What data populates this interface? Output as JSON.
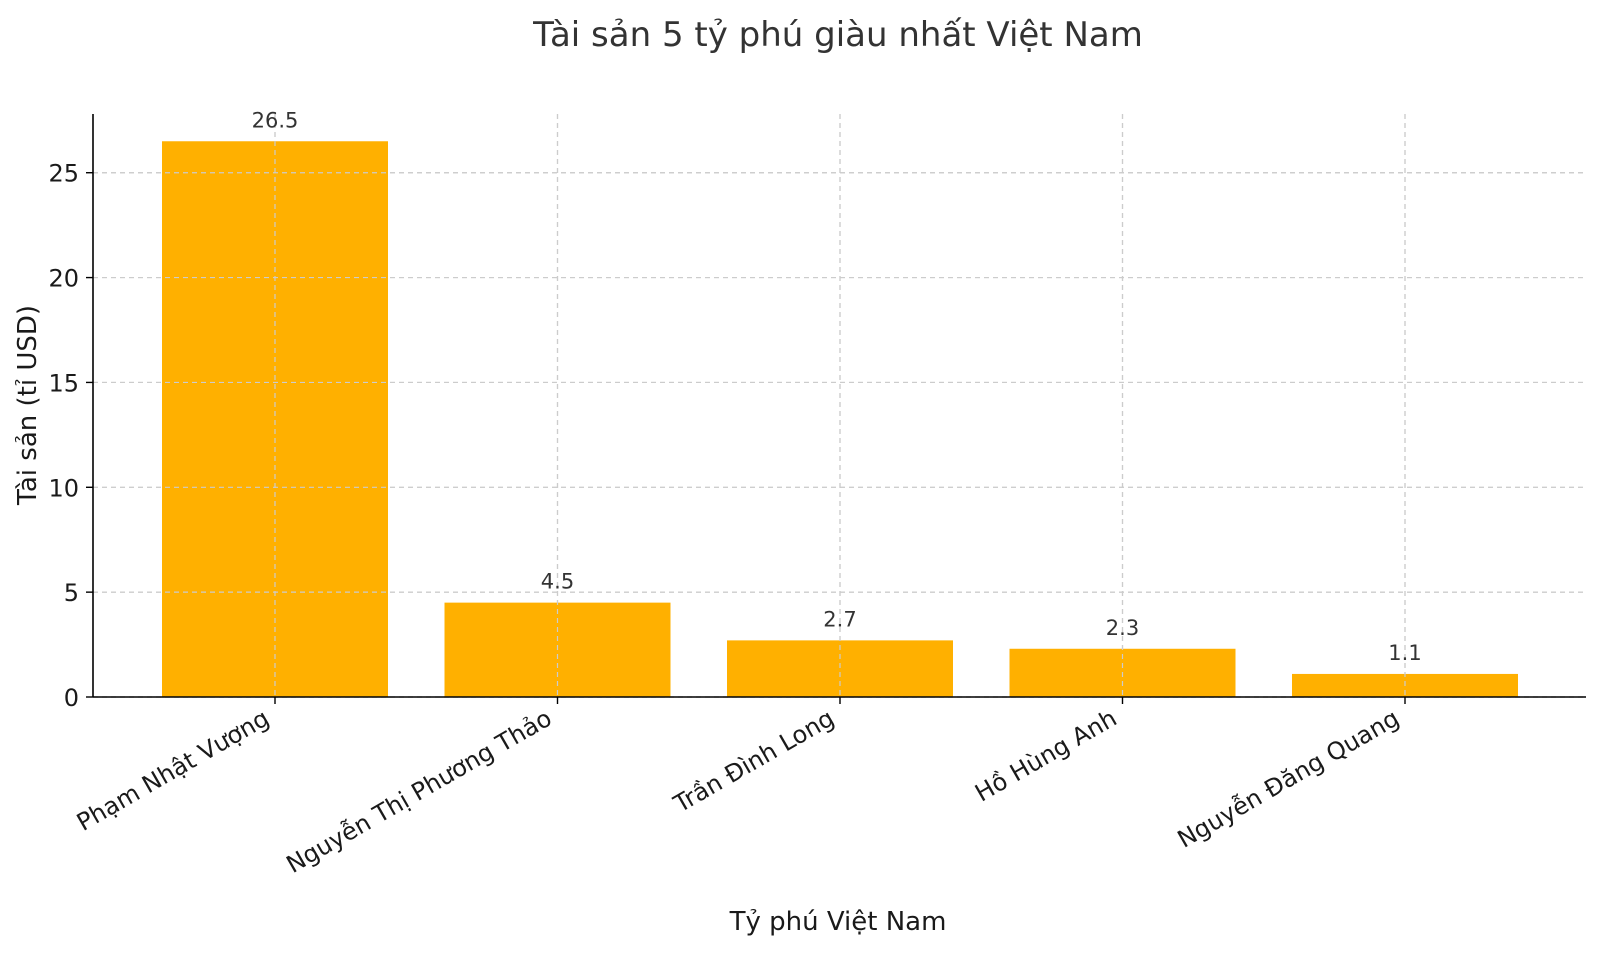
{
  "chart_data": {
    "type": "bar",
    "title": "Tài sản 5 tỷ phú giàu nhất Việt Nam",
    "xlabel": "Tỷ phú Việt Nam",
    "ylabel": "Tài sản (tỉ USD)",
    "categories": [
      "Phạm Nhật Vượng",
      "Nguyễn Thị Phương Thảo",
      "Trần Đình Long",
      "Hồ Hùng Anh",
      "Nguyễn Đăng Quang"
    ],
    "values": [
      26.5,
      4.5,
      2.7,
      2.3,
      1.1
    ],
    "data_labels": [
      "26.5",
      "4.5",
      "2.7",
      "2.3",
      "1.1"
    ],
    "yticks": [
      0,
      5,
      10,
      15,
      20,
      25
    ],
    "ylim": [
      0,
      27.8
    ],
    "grid": true,
    "bar_color": "#FFB000"
  }
}
